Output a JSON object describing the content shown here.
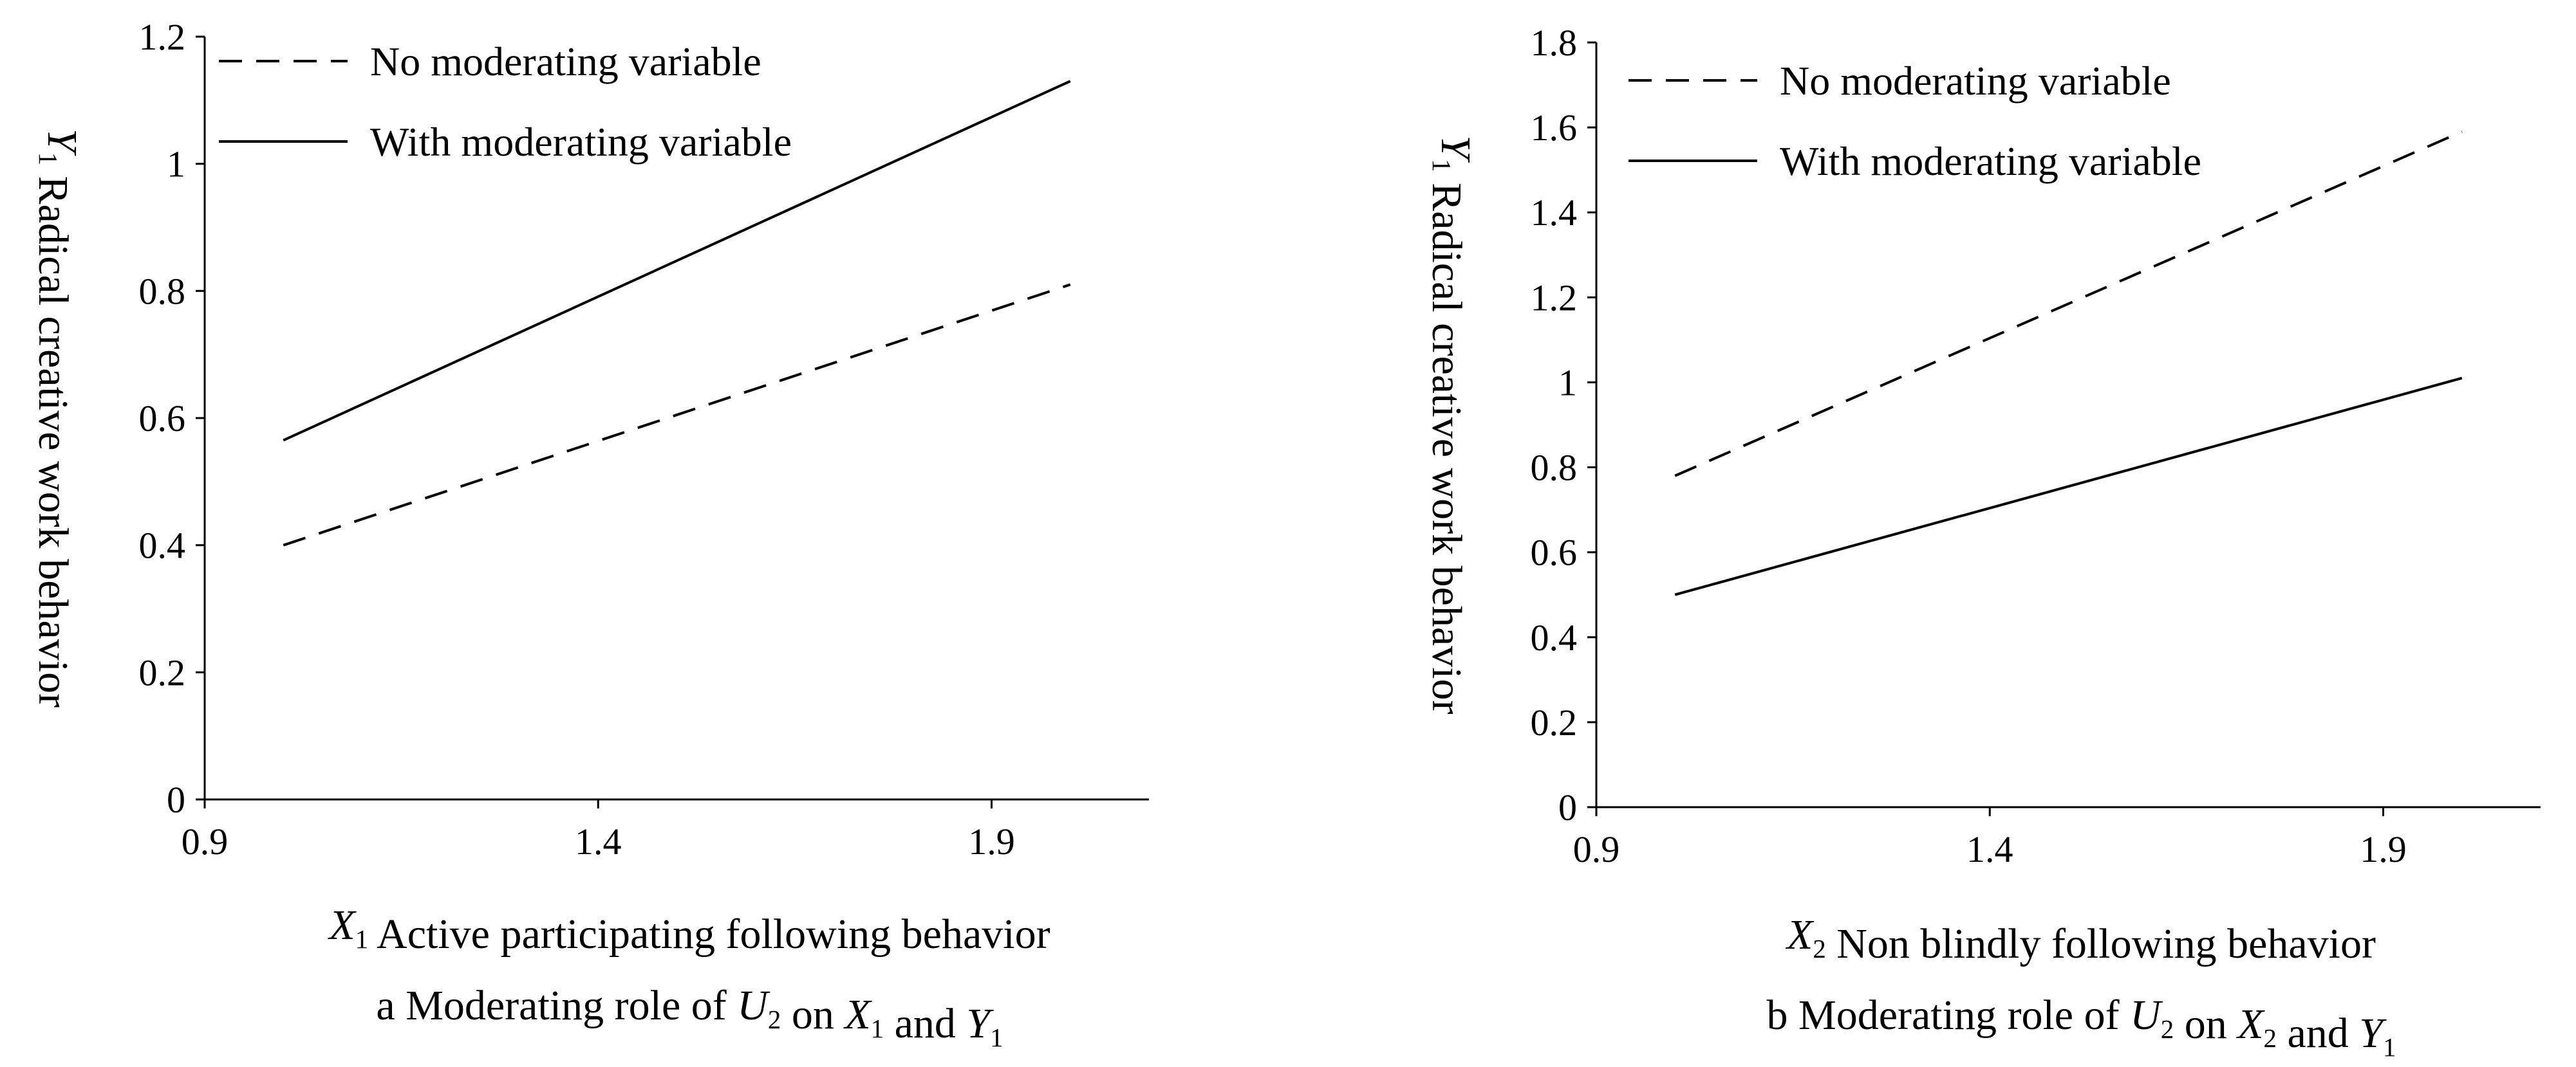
{
  "chart_data": [
    {
      "type": "line",
      "caption": "a  Moderating role of U2 on X1 and Y1",
      "xlabel": "X1 Active participating following behavior",
      "ylabel": "Y1 Radical creative work behavior",
      "xlim": [
        0.9,
        2.1
      ],
      "ylim": [
        0,
        1.2
      ],
      "x_ticks": [
        "0.9",
        "1.4",
        "1.9"
      ],
      "y_ticks": [
        "0",
        "0.2",
        "0.4",
        "0.6",
        "0.8",
        "1",
        "1.2"
      ],
      "legend_location": "top-left",
      "series": [
        {
          "name": "No moderating variable",
          "style": "dashed",
          "x": [
            1.0,
            2.0
          ],
          "y": [
            0.4,
            0.81
          ]
        },
        {
          "name": "With moderating variable",
          "style": "solid",
          "x": [
            1.0,
            2.0
          ],
          "y": [
            0.565,
            1.13
          ]
        }
      ]
    },
    {
      "type": "line",
      "caption": "b  Moderating role of U2 on X2 and Y1",
      "xlabel": "X2 Non blindly following behavior",
      "ylabel": "Y1 Radical creative work behavior",
      "xlim": [
        0.9,
        2.1
      ],
      "ylim": [
        0,
        1.8
      ],
      "x_ticks": [
        "0.9",
        "1.4",
        "1.9"
      ],
      "y_ticks": [
        "0",
        "0.2",
        "0.4",
        "0.6",
        "0.8",
        "1",
        "1.2",
        "1.4",
        "1.6",
        "1.8"
      ],
      "legend_location": "top-left",
      "series": [
        {
          "name": "No moderating variable",
          "style": "dashed",
          "x": [
            1.0,
            2.0
          ],
          "y": [
            0.78,
            1.59
          ]
        },
        {
          "name": "With moderating variable",
          "style": "solid",
          "x": [
            1.0,
            2.0
          ],
          "y": [
            0.5,
            1.01
          ]
        }
      ]
    }
  ]
}
